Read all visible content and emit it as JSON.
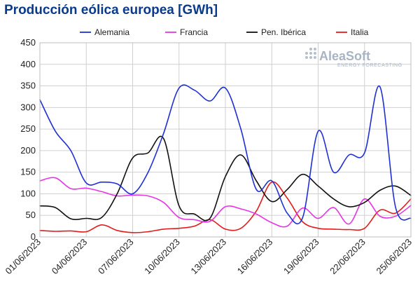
{
  "chart_data": {
    "type": "line",
    "title": "Producción eólica europea [GWh]",
    "xlabel": "",
    "ylabel": "",
    "ylim": [
      0,
      450
    ],
    "yticks": [
      0,
      50,
      100,
      150,
      200,
      250,
      300,
      350,
      400,
      450
    ],
    "x": [
      "01/06/2023",
      "02/06/2023",
      "03/06/2023",
      "04/06/2023",
      "05/06/2023",
      "06/06/2023",
      "07/06/2023",
      "08/06/2023",
      "09/06/2023",
      "10/06/2023",
      "11/06/2023",
      "12/06/2023",
      "13/06/2023",
      "14/06/2023",
      "15/06/2023",
      "16/06/2023",
      "17/06/2023",
      "18/06/2023",
      "19/06/2023",
      "20/06/2023",
      "21/06/2023",
      "22/06/2023",
      "23/06/2023",
      "24/06/2023",
      "25/06/2023"
    ],
    "xtick_labels": [
      "01/06/2023",
      "04/06/2023",
      "07/06/2023",
      "10/06/2023",
      "13/06/2023",
      "16/06/2023",
      "19/06/2023",
      "22/06/2023",
      "25/06/2023"
    ],
    "grid": true,
    "legend_position": "top",
    "series": [
      {
        "name": "Alemania",
        "color": "#1f2fd6",
        "values": [
          318,
          245,
          200,
          125,
          127,
          123,
          100,
          150,
          240,
          345,
          340,
          315,
          345,
          250,
          110,
          130,
          55,
          45,
          245,
          150,
          190,
          195,
          348,
          70,
          43
        ]
      },
      {
        "name": "Francia",
        "color": "#e535e5",
        "values": [
          130,
          137,
          112,
          113,
          105,
          95,
          97,
          95,
          80,
          45,
          40,
          36,
          70,
          65,
          53,
          33,
          25,
          67,
          43,
          68,
          30,
          88,
          48,
          48,
          73
        ]
      },
      {
        "name": "Pen. Ibérica",
        "color": "#111111",
        "values": [
          72,
          68,
          42,
          43,
          45,
          100,
          183,
          195,
          228,
          72,
          53,
          43,
          140,
          190,
          130,
          82,
          110,
          145,
          118,
          88,
          70,
          80,
          108,
          118,
          96
        ]
      },
      {
        "name": "Italia",
        "color": "#e31b1b",
        "values": [
          15,
          13,
          14,
          12,
          28,
          15,
          10,
          12,
          18,
          20,
          25,
          40,
          18,
          20,
          60,
          127,
          90,
          35,
          20,
          18,
          17,
          20,
          62,
          55,
          88
        ]
      }
    ]
  },
  "logo": {
    "name": "AleaSoft",
    "tagline": "ENERGY FORECASTING"
  }
}
